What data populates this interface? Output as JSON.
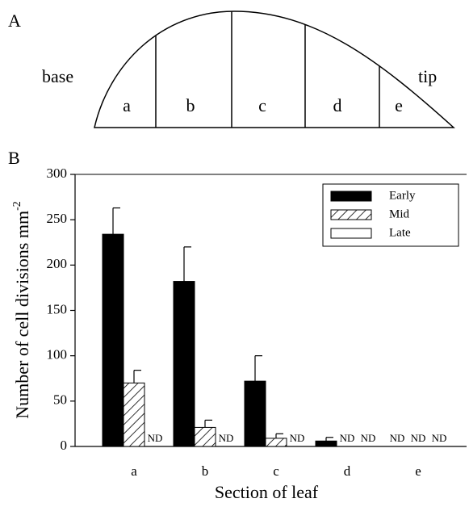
{
  "diagram": {
    "label": "A",
    "base": "base",
    "tip": "tip",
    "sections": [
      "a",
      "b",
      "c",
      "d",
      "e"
    ]
  },
  "chart_data": {
    "type": "bar",
    "panel_label": "B",
    "x_label": "Section of leaf",
    "y_label": "Number of cell divisions mm",
    "y_label_sup": "-2",
    "categories": [
      "a",
      "b",
      "c",
      "d",
      "e"
    ],
    "series": [
      {
        "name": "Early",
        "color": "#000000",
        "hatch": false,
        "values": [
          234,
          182,
          72,
          6,
          null
        ],
        "errors": [
          29,
          38,
          28,
          4,
          null
        ],
        "value_labels": [
          null,
          null,
          null,
          null,
          "ND"
        ]
      },
      {
        "name": "Mid",
        "color": "#ffffff",
        "hatch": true,
        "values": [
          70,
          21,
          9,
          null,
          null
        ],
        "errors": [
          14,
          8,
          5,
          null,
          null
        ],
        "value_labels": [
          null,
          null,
          null,
          "ND",
          "ND"
        ]
      },
      {
        "name": "Late",
        "color": "#ffffff",
        "hatch": false,
        "values": [
          null,
          null,
          null,
          null,
          null
        ],
        "errors": [
          null,
          null,
          null,
          null,
          null
        ],
        "value_labels": [
          "ND",
          "ND",
          "ND",
          "ND",
          "ND"
        ]
      }
    ],
    "ylim": [
      0,
      300
    ],
    "yticks": [
      0,
      50,
      100,
      150,
      200,
      250,
      300
    ],
    "legend": "upper right"
  }
}
